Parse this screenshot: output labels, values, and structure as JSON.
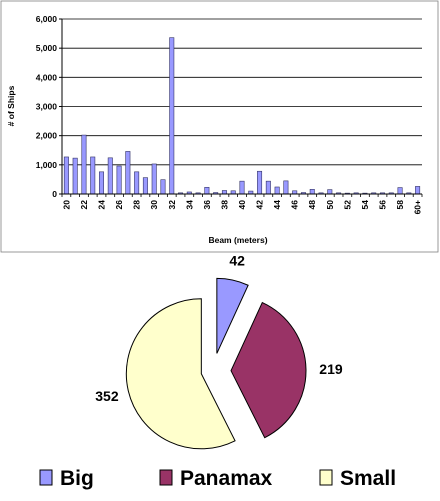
{
  "chart_data": [
    {
      "type": "bar",
      "xlabel": "Beam (meters)",
      "ylabel": "# of Ships",
      "ylim": [
        0,
        6000
      ],
      "yticks": [
        "0",
        "1,000",
        "2,000",
        "3,000",
        "4,000",
        "5,000",
        "6,000"
      ],
      "ytick_values": [
        0,
        1000,
        2000,
        3000,
        4000,
        5000,
        6000
      ],
      "categories": [
        "20",
        "21",
        "22",
        "23",
        "24",
        "25",
        "26",
        "27",
        "28",
        "29",
        "30",
        "31",
        "32",
        "33",
        "34",
        "35",
        "36",
        "37",
        "38",
        "39",
        "40",
        "41",
        "42",
        "43",
        "44",
        "45",
        "46",
        "47",
        "48",
        "49",
        "50",
        "51",
        "52",
        "53",
        "54",
        "55",
        "56",
        "57",
        "58",
        "59",
        "60+"
      ],
      "values": [
        1270,
        1230,
        2020,
        1270,
        760,
        1240,
        960,
        1460,
        760,
        560,
        1030,
        490,
        5360,
        40,
        70,
        40,
        230,
        50,
        120,
        110,
        440,
        100,
        780,
        440,
        240,
        450,
        110,
        50,
        160,
        40,
        150,
        40,
        30,
        40,
        30,
        40,
        40,
        40,
        220,
        40,
        260
      ],
      "tick_labels": [
        "20",
        "22",
        "24",
        "26",
        "28",
        "30",
        "32",
        "34",
        "36",
        "38",
        "40",
        "42",
        "44",
        "46",
        "48",
        "50",
        "52",
        "54",
        "56",
        "58",
        "60+"
      ],
      "bar_color": "#9999ff",
      "grid": true
    },
    {
      "type": "pie",
      "labels": [
        "Big",
        "Panamax",
        "Small"
      ],
      "values": [
        42,
        219,
        352
      ],
      "value_labels": [
        "42",
        "219",
        "352"
      ],
      "colors": [
        "#9999ff",
        "#993366",
        "#ffffcc"
      ],
      "exploded": true,
      "legend": "bottom"
    }
  ]
}
